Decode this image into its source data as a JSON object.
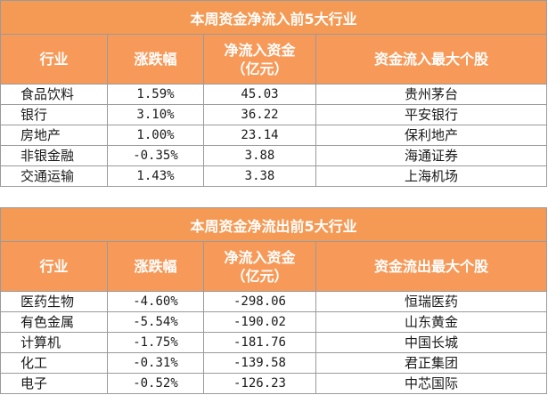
{
  "inflow": {
    "title": "本周资金净流入前5大行业",
    "headers": [
      "行业",
      "涨跌幅",
      "净流入资金\n（亿元）",
      "资金流入最大个股"
    ],
    "rows": [
      [
        "食品饮料",
        "1.59%",
        "45.03",
        "贵州茅台"
      ],
      [
        "银行",
        "3.10%",
        "36.22",
        "平安银行"
      ],
      [
        "房地产",
        "1.00%",
        "23.14",
        "保利地产"
      ],
      [
        "非银金融",
        "-0.35%",
        "3.88",
        "海通证券"
      ],
      [
        "交通运输",
        "1.43%",
        "3.38",
        "上海机场"
      ]
    ]
  },
  "outflow": {
    "title": "本周资金净流出前5大行业",
    "headers": [
      "行业",
      "涨跌幅",
      "净流入资金\n（亿元）",
      "资金流出最大个股"
    ],
    "rows": [
      [
        "医药生物",
        "-4.60%",
        "-298.06",
        "恒瑞医药"
      ],
      [
        "有色金属",
        "-5.54%",
        "-190.02",
        "山东黄金"
      ],
      [
        "计算机",
        "-1.75%",
        "-181.76",
        "中国长城"
      ],
      [
        "化工",
        "-0.31%",
        "-139.58",
        "君正集团"
      ],
      [
        "电子",
        "-0.52%",
        "-126.23",
        "中芯国际"
      ]
    ]
  },
  "colors": {
    "header_bg": "#f79a59",
    "header_text": "#ffffff",
    "border": "#9a9a9a"
  }
}
